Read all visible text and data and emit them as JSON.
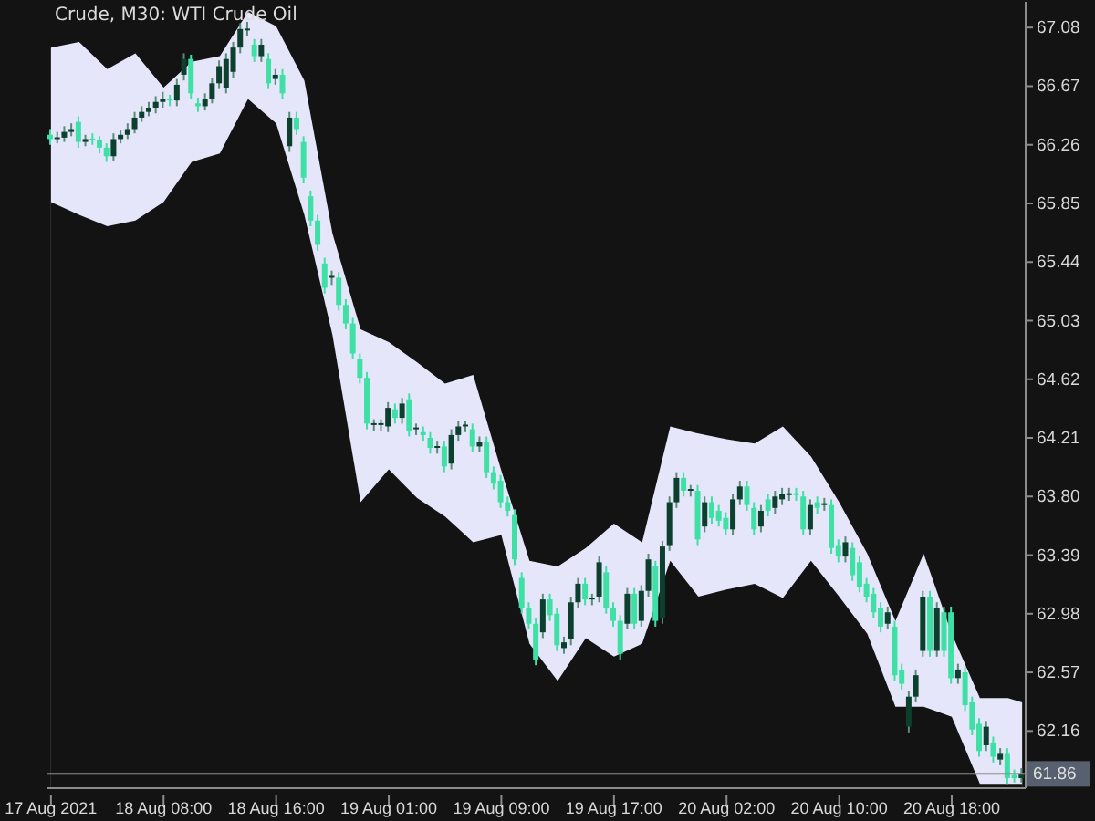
{
  "chart_data": {
    "type": "candlestick",
    "title": "Crude, M30: WTI Crude Oil",
    "categories": [
      "17 Aug 2021",
      null,
      null,
      null,
      null,
      null,
      null,
      null,
      null,
      null,
      null,
      null,
      null,
      null,
      null,
      null,
      "18 Aug 08:00",
      null,
      null,
      null,
      null,
      null,
      null,
      null,
      null,
      null,
      null,
      null,
      null,
      null,
      null,
      null,
      "18 Aug 16:00",
      null,
      null,
      null,
      null,
      null,
      null,
      null,
      null,
      null,
      null,
      null,
      null,
      null,
      null,
      null,
      "19 Aug 01:00",
      null,
      null,
      null,
      null,
      null,
      null,
      null,
      null,
      null,
      null,
      null,
      null,
      null,
      null,
      null,
      "19 Aug 09:00",
      null,
      null,
      null,
      null,
      null,
      null,
      null,
      null,
      null,
      null,
      null,
      null,
      null,
      null,
      null,
      "19 Aug 17:00",
      null,
      null,
      null,
      null,
      null,
      null,
      null,
      null,
      null,
      null,
      null,
      null,
      null,
      null,
      null,
      "20 Aug 02:00",
      null,
      null,
      null,
      null,
      null,
      null,
      null,
      null,
      null,
      null,
      null,
      null,
      null,
      null,
      null,
      "20 Aug 10:00",
      null,
      null,
      null,
      null,
      null,
      null,
      null,
      null,
      null,
      null,
      null,
      null,
      null,
      null,
      null,
      "20 Aug 18:00",
      null,
      null,
      null,
      null,
      null,
      null,
      null,
      null,
      null,
      null
    ],
    "ohlc": [
      [
        66.33,
        66.37,
        66.26,
        66.3
      ],
      [
        66.3,
        66.35,
        66.27,
        66.31
      ],
      [
        66.31,
        66.39,
        66.28,
        66.35
      ],
      [
        66.35,
        66.41,
        66.32,
        66.37
      ],
      [
        66.42,
        66.46,
        66.24,
        66.28
      ],
      [
        66.28,
        66.33,
        66.25,
        66.3
      ],
      [
        66.3,
        66.34,
        66.26,
        66.29
      ],
      [
        66.29,
        66.32,
        66.2,
        66.24
      ],
      [
        66.24,
        66.27,
        66.14,
        66.18
      ],
      [
        66.18,
        66.34,
        66.15,
        66.3
      ],
      [
        66.3,
        66.36,
        66.27,
        66.33
      ],
      [
        66.33,
        66.41,
        66.3,
        66.37
      ],
      [
        66.37,
        66.49,
        66.34,
        66.45
      ],
      [
        66.45,
        66.53,
        66.42,
        66.49
      ],
      [
        66.49,
        66.56,
        66.46,
        66.52
      ],
      [
        66.52,
        66.6,
        66.48,
        66.56
      ],
      [
        66.56,
        66.63,
        66.52,
        66.58
      ],
      [
        66.58,
        66.61,
        66.53,
        66.57
      ],
      [
        66.57,
        66.72,
        66.53,
        66.68
      ],
      [
        66.75,
        66.9,
        66.71,
        66.86
      ],
      [
        66.86,
        66.89,
        66.58,
        66.62
      ],
      [
        66.55,
        66.59,
        66.49,
        66.53
      ],
      [
        66.53,
        66.62,
        66.5,
        66.58
      ],
      [
        66.58,
        66.73,
        66.55,
        66.69
      ],
      [
        66.69,
        66.85,
        66.65,
        66.81
      ],
      [
        66.66,
        66.9,
        66.62,
        66.86
      ],
      [
        66.77,
        66.98,
        66.73,
        66.94
      ],
      [
        66.94,
        67.11,
        66.9,
        67.07
      ],
      [
        67.06,
        67.12,
        67.02,
        67.07
      ],
      [
        66.96,
        67.0,
        66.84,
        66.88
      ],
      [
        66.88,
        67.0,
        66.84,
        66.96
      ],
      [
        66.86,
        66.9,
        66.65,
        66.69
      ],
      [
        66.72,
        66.79,
        66.68,
        66.75
      ],
      [
        66.75,
        66.79,
        66.58,
        66.62
      ],
      [
        66.25,
        66.49,
        66.21,
        66.45
      ],
      [
        66.45,
        66.49,
        66.33,
        66.37
      ],
      [
        66.28,
        66.32,
        65.99,
        66.03
      ],
      [
        65.9,
        65.94,
        65.69,
        65.73
      ],
      [
        65.73,
        65.77,
        65.52,
        65.56
      ],
      [
        65.43,
        65.47,
        65.22,
        65.26
      ],
      [
        65.33,
        65.38,
        65.28,
        65.33
      ],
      [
        65.33,
        65.37,
        65.1,
        65.14
      ],
      [
        65.14,
        65.18,
        64.97,
        65.01
      ],
      [
        65.01,
        65.05,
        64.76,
        64.8
      ],
      [
        64.76,
        64.8,
        64.59,
        64.63
      ],
      [
        64.63,
        64.67,
        64.27,
        64.31
      ],
      [
        64.3,
        64.34,
        64.26,
        64.3
      ],
      [
        64.3,
        64.34,
        64.26,
        64.3
      ],
      [
        64.29,
        64.46,
        64.25,
        64.42
      ],
      [
        64.41,
        64.45,
        64.31,
        64.35
      ],
      [
        64.35,
        64.49,
        64.31,
        64.45
      ],
      [
        64.48,
        64.52,
        64.22,
        64.26
      ],
      [
        64.27,
        64.31,
        64.23,
        64.27
      ],
      [
        64.25,
        64.29,
        64.19,
        64.23
      ],
      [
        64.21,
        64.25,
        64.1,
        64.14
      ],
      [
        64.14,
        64.19,
        64.1,
        64.15
      ],
      [
        64.15,
        64.19,
        63.97,
        64.01
      ],
      [
        64.03,
        64.27,
        63.99,
        64.23
      ],
      [
        64.23,
        64.33,
        64.19,
        64.29
      ],
      [
        64.29,
        64.33,
        64.25,
        64.29
      ],
      [
        64.27,
        64.31,
        64.11,
        64.15
      ],
      [
        64.15,
        64.22,
        64.11,
        64.18
      ],
      [
        64.18,
        64.22,
        63.93,
        63.97
      ],
      [
        63.97,
        64.01,
        63.85,
        63.89
      ],
      [
        63.91,
        63.95,
        63.72,
        63.76
      ],
      [
        63.76,
        63.8,
        63.66,
        63.7
      ],
      [
        63.67,
        63.71,
        63.32,
        63.36
      ],
      [
        63.23,
        63.27,
        62.98,
        63.02
      ],
      [
        63.02,
        63.06,
        62.87,
        62.91
      ],
      [
        62.91,
        62.95,
        62.62,
        62.66
      ],
      [
        62.85,
        63.12,
        62.81,
        63.08
      ],
      [
        63.08,
        63.12,
        62.93,
        62.97
      ],
      [
        62.98,
        63.02,
        62.72,
        62.76
      ],
      [
        62.74,
        62.82,
        62.7,
        62.78
      ],
      [
        62.8,
        63.1,
        62.76,
        63.06
      ],
      [
        63.06,
        63.23,
        63.02,
        63.19
      ],
      [
        63.19,
        63.23,
        63.04,
        63.08
      ],
      [
        63.08,
        63.12,
        63.04,
        63.08
      ],
      [
        63.1,
        63.38,
        63.06,
        63.34
      ],
      [
        63.27,
        63.31,
        62.98,
        63.02
      ],
      [
        63.02,
        63.06,
        62.89,
        62.93
      ],
      [
        62.93,
        62.97,
        62.66,
        62.7
      ],
      [
        62.91,
        63.16,
        62.87,
        63.12
      ],
      [
        63.12,
        63.16,
        62.87,
        62.91
      ],
      [
        62.93,
        63.18,
        62.89,
        63.14
      ],
      [
        63.14,
        63.4,
        63.1,
        63.36
      ],
      [
        63.31,
        63.35,
        62.89,
        62.93
      ],
      [
        62.95,
        63.49,
        62.91,
        63.45
      ],
      [
        63.46,
        63.8,
        63.42,
        63.76
      ],
      [
        63.76,
        63.97,
        63.72,
        63.93
      ],
      [
        63.93,
        63.97,
        63.8,
        63.84
      ],
      [
        63.84,
        63.88,
        63.8,
        63.84
      ],
      [
        63.84,
        63.88,
        63.46,
        63.5
      ],
      [
        63.59,
        63.8,
        63.55,
        63.76
      ],
      [
        63.76,
        63.8,
        63.61,
        63.65
      ],
      [
        63.7,
        63.74,
        63.59,
        63.63
      ],
      [
        63.65,
        63.69,
        63.53,
        63.57
      ],
      [
        63.57,
        63.82,
        63.53,
        63.78
      ],
      [
        63.78,
        63.91,
        63.74,
        63.87
      ],
      [
        63.87,
        63.91,
        63.7,
        63.74
      ],
      [
        63.72,
        63.76,
        63.53,
        63.57
      ],
      [
        63.59,
        63.74,
        63.55,
        63.7
      ],
      [
        63.78,
        63.82,
        63.66,
        63.7
      ],
      [
        63.72,
        63.84,
        63.68,
        63.8
      ],
      [
        63.78,
        63.86,
        63.74,
        63.82
      ],
      [
        63.81,
        63.86,
        63.77,
        63.82
      ],
      [
        63.82,
        63.86,
        63.77,
        63.81
      ],
      [
        63.8,
        63.84,
        63.53,
        63.57
      ],
      [
        63.57,
        63.78,
        63.53,
        63.74
      ],
      [
        63.76,
        63.8,
        63.68,
        63.72
      ],
      [
        63.74,
        63.79,
        63.7,
        63.75
      ],
      [
        63.74,
        63.78,
        63.4,
        63.44
      ],
      [
        63.46,
        63.5,
        63.34,
        63.38
      ],
      [
        63.38,
        63.52,
        63.34,
        63.48
      ],
      [
        63.44,
        63.48,
        63.21,
        63.25
      ],
      [
        63.34,
        63.38,
        63.13,
        63.17
      ],
      [
        63.19,
        63.23,
        63.06,
        63.1
      ],
      [
        63.12,
        63.16,
        62.95,
        62.99
      ],
      [
        63.02,
        63.06,
        62.85,
        62.89
      ],
      [
        62.91,
        63.03,
        62.87,
        62.99
      ],
      [
        62.89,
        62.93,
        62.51,
        62.55
      ],
      [
        62.59,
        62.63,
        62.45,
        62.49
      ],
      [
        62.19,
        62.44,
        62.15,
        62.4
      ],
      [
        62.4,
        62.59,
        62.36,
        62.55
      ],
      [
        62.72,
        63.14,
        62.68,
        63.1
      ],
      [
        63.1,
        63.14,
        62.68,
        62.72
      ],
      [
        62.72,
        63.06,
        62.68,
        63.02
      ],
      [
        62.99,
        63.03,
        62.68,
        62.72
      ],
      [
        62.99,
        63.03,
        62.49,
        62.53
      ],
      [
        62.53,
        62.63,
        62.49,
        62.59
      ],
      [
        62.57,
        62.61,
        62.3,
        62.34
      ],
      [
        62.36,
        62.4,
        62.13,
        62.17
      ],
      [
        62.21,
        62.25,
        61.98,
        62.02
      ],
      [
        62.06,
        62.23,
        62.02,
        62.19
      ],
      [
        62.08,
        62.12,
        61.94,
        61.98
      ],
      [
        61.96,
        62.04,
        61.92,
        62.0
      ],
      [
        62.0,
        62.04,
        61.79,
        61.83
      ],
      [
        61.85,
        61.89,
        61.8,
        61.83
      ],
      [
        61.83,
        61.9,
        61.8,
        61.86
      ]
    ],
    "colors": [
      "#3ee0a6",
      "#0c3f2e",
      "#0c3f2e",
      "#0c3f2e",
      "#3ee0a6",
      "#0c3f2e",
      "#3ee0a6",
      "#3ee0a6",
      "#3ee0a6",
      "#0c3f2e",
      "#0c3f2e",
      "#0c3f2e",
      "#0c3f2e",
      "#0c3f2e",
      "#0c3f2e",
      "#0c3f2e",
      "#0c3f2e",
      "#3ee0a6",
      "#0c3f2e",
      "#0c3f2e",
      "#3ee0a6",
      "#3ee0a6",
      "#0c3f2e",
      "#0c3f2e",
      "#0c3f2e",
      "#0c3f2e",
      "#0c3f2e",
      "#0c3f2e",
      "#0c3f2e",
      "#3ee0a6",
      "#0c3f2e",
      "#3ee0a6",
      "#0c3f2e",
      "#3ee0a6",
      "#0c3f2e",
      "#3ee0a6",
      "#3ee0a6",
      "#3ee0a6",
      "#3ee0a6",
      "#3ee0a6",
      "#0c3f2e",
      "#3ee0a6",
      "#3ee0a6",
      "#3ee0a6",
      "#3ee0a6",
      "#3ee0a6",
      "#0c3f2e",
      "#0c3f2e",
      "#0c3f2e",
      "#3ee0a6",
      "#0c3f2e",
      "#3ee0a6",
      "#0c3f2e",
      "#3ee0a6",
      "#3ee0a6",
      "#0c3f2e",
      "#3ee0a6",
      "#0c3f2e",
      "#0c3f2e",
      "#0c3f2e",
      "#3ee0a6",
      "#0c3f2e",
      "#3ee0a6",
      "#3ee0a6",
      "#3ee0a6",
      "#3ee0a6",
      "#3ee0a6",
      "#3ee0a6",
      "#3ee0a6",
      "#3ee0a6",
      "#0c3f2e",
      "#3ee0a6",
      "#3ee0a6",
      "#0c3f2e",
      "#0c3f2e",
      "#0c3f2e",
      "#3ee0a6",
      "#0c3f2e",
      "#0c3f2e",
      "#3ee0a6",
      "#3ee0a6",
      "#3ee0a6",
      "#0c3f2e",
      "#3ee0a6",
      "#0c3f2e",
      "#0c3f2e",
      "#3ee0a6",
      "#0c3f2e",
      "#0c3f2e",
      "#0c3f2e",
      "#3ee0a6",
      "#0c3f2e",
      "#3ee0a6",
      "#0c3f2e",
      "#3ee0a6",
      "#3ee0a6",
      "#3ee0a6",
      "#0c3f2e",
      "#0c3f2e",
      "#3ee0a6",
      "#3ee0a6",
      "#0c3f2e",
      "#3ee0a6",
      "#0c3f2e",
      "#0c3f2e",
      "#0c3f2e",
      "#3ee0a6",
      "#3ee0a6",
      "#0c3f2e",
      "#3ee0a6",
      "#0c3f2e",
      "#3ee0a6",
      "#3ee0a6",
      "#0c3f2e",
      "#3ee0a6",
      "#3ee0a6",
      "#3ee0a6",
      "#3ee0a6",
      "#3ee0a6",
      "#0c3f2e",
      "#3ee0a6",
      "#3ee0a6",
      "#0c3f2e",
      "#0c3f2e",
      "#0c3f2e",
      "#3ee0a6",
      "#0c3f2e",
      "#3ee0a6",
      "#3ee0a6",
      "#0c3f2e",
      "#3ee0a6",
      "#3ee0a6",
      "#3ee0a6",
      "#0c3f2e",
      "#3ee0a6",
      "#0c3f2e",
      "#3ee0a6",
      "#3ee0a6",
      "#0c3f2e"
    ],
    "series": [
      {
        "type": "area",
        "color": "#131313",
        "values": [
          65.86,
          null,
          null,
          null,
          65.77,
          null,
          null,
          null,
          65.69,
          null,
          null,
          null,
          65.73,
          null,
          null,
          null,
          65.86,
          null,
          null,
          null,
          66.14,
          null,
          null,
          null,
          66.2,
          null,
          null,
          null,
          66.58,
          null,
          null,
          null,
          66.41,
          null,
          null,
          null,
          65.77,
          null,
          null,
          null,
          64.93,
          null,
          null,
          null,
          63.76,
          null,
          null,
          null,
          63.99,
          null,
          null,
          null,
          63.79,
          null,
          null,
          null,
          63.66,
          null,
          null,
          null,
          63.48,
          null,
          null,
          null,
          63.53,
          null,
          null,
          null,
          62.77,
          null,
          null,
          null,
          62.51,
          null,
          null,
          null,
          62.81,
          null,
          null,
          null,
          62.68,
          null,
          null,
          null,
          62.77,
          null,
          null,
          null,
          63.35,
          null,
          null,
          null,
          63.1,
          null,
          null,
          null,
          63.15,
          null,
          null,
          null,
          63.19,
          null,
          null,
          null,
          63.09,
          null,
          null,
          null,
          63.35,
          null,
          null,
          null,
          63.1,
          null,
          null,
          null,
          62.84,
          null,
          null,
          null,
          62.33,
          null,
          null,
          null,
          62.33,
          null,
          null,
          null,
          62.26,
          null,
          null,
          null,
          61.79,
          null,
          null,
          null,
          61.79,
          null,
          61.79
        ]
      },
      {
        "type": "area",
        "color": "#e6e6fa",
        "values": [
          66.94,
          null,
          null,
          null,
          66.98,
          null,
          null,
          null,
          66.79,
          null,
          null,
          null,
          66.9,
          null,
          null,
          null,
          66.66,
          null,
          null,
          null,
          66.84,
          null,
          null,
          null,
          66.88,
          null,
          null,
          null,
          67.19,
          null,
          null,
          null,
          67.09,
          null,
          null,
          null,
          66.71,
          null,
          null,
          null,
          65.64,
          null,
          null,
          null,
          64.97,
          null,
          null,
          null,
          64.88,
          null,
          null,
          null,
          64.74,
          null,
          null,
          null,
          64.59,
          null,
          null,
          null,
          64.65,
          null,
          null,
          null,
          63.98,
          null,
          null,
          null,
          63.35,
          null,
          null,
          null,
          63.31,
          null,
          null,
          null,
          63.44,
          null,
          null,
          null,
          63.61,
          null,
          null,
          null,
          63.48,
          null,
          null,
          null,
          64.29,
          null,
          null,
          null,
          64.24,
          null,
          null,
          null,
          64.2,
          null,
          null,
          null,
          64.17,
          null,
          null,
          null,
          64.29,
          null,
          null,
          null,
          64.08,
          null,
          null,
          null,
          63.76,
          null,
          null,
          null,
          63.4,
          null,
          null,
          null,
          62.93,
          null,
          null,
          null,
          63.4,
          null,
          null,
          null,
          62.84,
          null,
          null,
          null,
          62.39,
          null,
          null,
          null,
          62.39,
          null,
          62.36
        ]
      }
    ],
    "ylim": [
      61.76,
      67.26
    ],
    "yticks": [
      67.08,
      66.67,
      66.26,
      65.85,
      65.44,
      65.03,
      64.62,
      64.21,
      {
        "value": 63.8,
        "label": "63.80"
      },
      63.39,
      62.98,
      62.57,
      62.16
    ],
    "ref_lines": [
      {
        "axis": "y",
        "value": 61.86,
        "label": "61.86",
        "color": "#8c8c8c"
      }
    ],
    "grid": false,
    "legend": false,
    "tick_labels": true
  }
}
